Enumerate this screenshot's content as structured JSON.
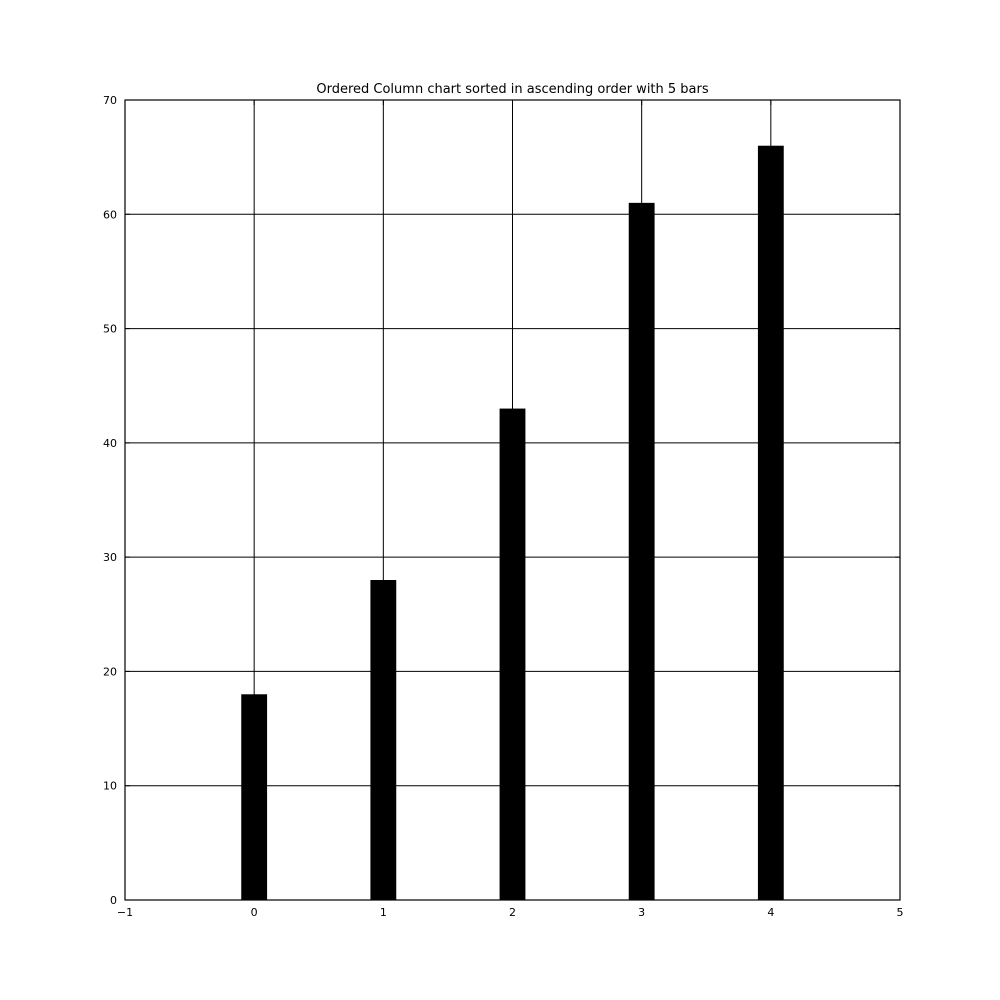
{
  "chart_data": {
    "type": "bar",
    "title": "Ordered Column chart sorted in ascending order with 5 bars",
    "xlabel": "",
    "ylabel": "",
    "x": [
      0,
      1,
      2,
      3,
      4
    ],
    "values": [
      18,
      28,
      43,
      61,
      66
    ],
    "bar_width": 0.2,
    "xlim": [
      -1,
      5
    ],
    "ylim": [
      0,
      70
    ],
    "xticks": [
      -1,
      0,
      1,
      2,
      3,
      4,
      5
    ],
    "xtick_labels": [
      "−1",
      "0",
      "1",
      "2",
      "3",
      "4",
      "5"
    ],
    "yticks": [
      0,
      10,
      20,
      30,
      40,
      50,
      60,
      70
    ],
    "ytick_labels": [
      "0",
      "10",
      "20",
      "30",
      "40",
      "50",
      "60",
      "70"
    ],
    "grid": true,
    "bar_color": "#000000",
    "grid_color": "#000000",
    "background_color": "#ffffff"
  }
}
